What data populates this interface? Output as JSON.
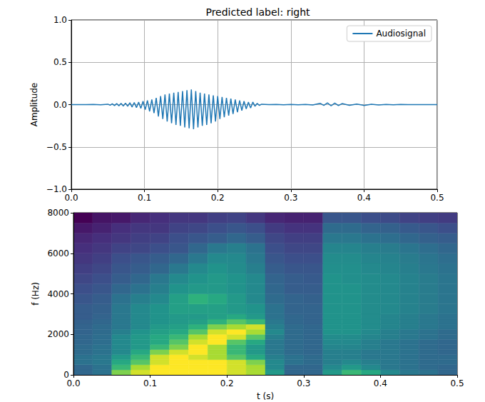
{
  "chart_data": [
    {
      "type": "line",
      "title": "Predicted label: right",
      "y_label": "Amplitude",
      "x": [
        0,
        0.01,
        0.02,
        0.03,
        0.04,
        0.05,
        0.053,
        0.056,
        0.059,
        0.062,
        0.065,
        0.068,
        0.071,
        0.074,
        0.077,
        0.08,
        0.083,
        0.086,
        0.089,
        0.092,
        0.095,
        0.098,
        0.101,
        0.104,
        0.107,
        0.11,
        0.113,
        0.116,
        0.119,
        0.122,
        0.125,
        0.128,
        0.131,
        0.134,
        0.137,
        0.14,
        0.143,
        0.146,
        0.149,
        0.152,
        0.155,
        0.158,
        0.161,
        0.164,
        0.167,
        0.17,
        0.173,
        0.176,
        0.179,
        0.182,
        0.185,
        0.188,
        0.191,
        0.194,
        0.197,
        0.2,
        0.203,
        0.206,
        0.209,
        0.212,
        0.215,
        0.218,
        0.221,
        0.224,
        0.227,
        0.23,
        0.233,
        0.236,
        0.239,
        0.242,
        0.245,
        0.248,
        0.251,
        0.254,
        0.257,
        0.26,
        0.27,
        0.28,
        0.29,
        0.3,
        0.31,
        0.32,
        0.33,
        0.34,
        0.345,
        0.35,
        0.355,
        0.36,
        0.365,
        0.37,
        0.38,
        0.39,
        0.4,
        0.41,
        0.42,
        0.43,
        0.44,
        0.45,
        0.46,
        0.47,
        0.48,
        0.49,
        0.5
      ],
      "series": [
        {
          "name": "Audiosignal",
          "color": "#1f77b4",
          "values": [
            0,
            0.001,
            -0.001,
            0.002,
            -0.003,
            0.005,
            -0.008,
            0.01,
            -0.012,
            0.012,
            -0.015,
            0.015,
            -0.018,
            0.018,
            -0.02,
            0.022,
            -0.028,
            0.025,
            -0.035,
            0.03,
            -0.045,
            0.04,
            -0.06,
            0.05,
            -0.08,
            0.06,
            -0.1,
            0.08,
            -0.14,
            0.1,
            -0.17,
            0.12,
            -0.2,
            0.13,
            -0.22,
            0.14,
            -0.24,
            0.15,
            -0.25,
            0.16,
            -0.27,
            0.17,
            -0.28,
            0.18,
            -0.29,
            0.16,
            -0.27,
            0.14,
            -0.25,
            0.13,
            -0.24,
            0.12,
            -0.22,
            0.11,
            -0.2,
            0.1,
            -0.17,
            0.09,
            -0.15,
            0.08,
            -0.13,
            0.07,
            -0.11,
            0.06,
            -0.09,
            0.05,
            -0.07,
            0.04,
            -0.05,
            0.03,
            -0.04,
            0.03,
            -0.02,
            0.015,
            -0.01,
            0.005,
            0,
            0.002,
            -0.002,
            0.002,
            -0.003,
            0.003,
            -0.005,
            0.015,
            -0.01,
            0.02,
            -0.015,
            0.018,
            -0.012,
            0.012,
            -0.008,
            0.006,
            -0.01,
            0.005,
            -0.004,
            0.003,
            -0.002,
            0.002,
            -0.001,
            0.001,
            0,
            0,
            0
          ]
        }
      ],
      "xlim": [
        0,
        0.5
      ],
      "xticks": [
        {
          "value": 0,
          "label": "0.0"
        },
        0.1,
        0.2,
        0.3,
        0.4,
        0.5
      ],
      "ylim": [
        -1,
        1
      ],
      "yticks": [
        {
          "value": -1,
          "label": "−1.0"
        },
        {
          "value": -0.5,
          "label": "−0.5"
        },
        {
          "value": 0,
          "label": "0.0"
        },
        0.5,
        {
          "value": 1,
          "label": "1.0"
        }
      ],
      "grid": true,
      "legend": "upper right"
    },
    {
      "type": "heatmap",
      "x_label": "t (s)",
      "y_label": "f (Hz)",
      "xlim": [
        0,
        0.5
      ],
      "xticks": [
        {
          "value": 0,
          "label": "0.0"
        },
        0.1,
        0.2,
        0.3,
        0.4,
        0.5
      ],
      "ylim": [
        0,
        8000
      ],
      "yticks": [
        0,
        2000,
        4000,
        6000,
        8000
      ],
      "x_bins": [
        0,
        0.025,
        0.05,
        0.075,
        0.1,
        0.125,
        0.15,
        0.175,
        0.2,
        0.225,
        0.25,
        0.275,
        0.3,
        0.325,
        0.35,
        0.375,
        0.4,
        0.425,
        0.45,
        0.475,
        0.5
      ],
      "y_bins": [
        0,
        250,
        500,
        750,
        1000,
        1250,
        1500,
        1750,
        2000,
        2250,
        2500,
        2750,
        3000,
        3500,
        4000,
        4500,
        5000,
        5500,
        6000,
        6500,
        7000,
        7500,
        8000
      ],
      "cells": [
        [
          45,
          48,
          80,
          90,
          95,
          95,
          95,
          95,
          90,
          85,
          60,
          45,
          45,
          60,
          70,
          65,
          55,
          50,
          48,
          45
        ],
        [
          45,
          48,
          70,
          85,
          95,
          95,
          95,
          95,
          90,
          85,
          55,
          45,
          45,
          55,
          60,
          55,
          50,
          48,
          46,
          45
        ],
        [
          48,
          50,
          65,
          75,
          90,
          95,
          95,
          95,
          90,
          80,
          55,
          48,
          46,
          52,
          55,
          52,
          50,
          48,
          46,
          46
        ],
        [
          48,
          50,
          60,
          70,
          90,
          95,
          90,
          85,
          75,
          65,
          52,
          48,
          46,
          52,
          52,
          50,
          50,
          48,
          46,
          46
        ],
        [
          46,
          48,
          55,
          65,
          80,
          90,
          95,
          85,
          70,
          60,
          50,
          46,
          45,
          52,
          52,
          50,
          50,
          48,
          46,
          45
        ],
        [
          46,
          48,
          55,
          60,
          70,
          80,
          95,
          85,
          70,
          60,
          50,
          46,
          45,
          54,
          54,
          52,
          50,
          48,
          46,
          45
        ],
        [
          45,
          47,
          55,
          60,
          65,
          75,
          90,
          95,
          75,
          65,
          50,
          46,
          45,
          55,
          55,
          52,
          50,
          48,
          46,
          45
        ],
        [
          45,
          47,
          55,
          60,
          65,
          70,
          85,
          95,
          90,
          75,
          52,
          46,
          45,
          56,
          56,
          54,
          52,
          50,
          48,
          46
        ],
        [
          44,
          46,
          52,
          58,
          62,
          65,
          75,
          90,
          95,
          85,
          55,
          46,
          45,
          58,
          58,
          55,
          52,
          50,
          48,
          46
        ],
        [
          44,
          46,
          50,
          55,
          60,
          62,
          68,
          80,
          85,
          90,
          52,
          46,
          45,
          58,
          58,
          56,
          54,
          52,
          50,
          48
        ],
        [
          43,
          45,
          50,
          55,
          58,
          60,
          62,
          68,
          75,
          70,
          50,
          45,
          44,
          58,
          58,
          56,
          54,
          52,
          50,
          48
        ],
        [
          42,
          44,
          50,
          55,
          58,
          60,
          60,
          62,
          65,
          60,
          48,
          45,
          44,
          58,
          58,
          56,
          54,
          52,
          50,
          48
        ],
        [
          42,
          43,
          50,
          55,
          58,
          62,
          62,
          62,
          60,
          58,
          48,
          44,
          44,
          58,
          58,
          56,
          55,
          53,
          51,
          49
        ],
        [
          40,
          42,
          48,
          52,
          55,
          62,
          68,
          65,
          60,
          55,
          46,
          44,
          43,
          58,
          58,
          56,
          55,
          53,
          51,
          49
        ],
        [
          38,
          40,
          45,
          48,
          52,
          58,
          60,
          60,
          58,
          55,
          45,
          42,
          42,
          58,
          58,
          56,
          55,
          53,
          51,
          49
        ],
        [
          36,
          38,
          42,
          45,
          50,
          55,
          58,
          60,
          58,
          55,
          44,
          42,
          41,
          58,
          57,
          56,
          55,
          53,
          51,
          49
        ],
        [
          34,
          36,
          40,
          42,
          45,
          50,
          55,
          58,
          56,
          52,
          42,
          40,
          40,
          57,
          57,
          55,
          54,
          52,
          50,
          48
        ],
        [
          32,
          34,
          38,
          40,
          42,
          45,
          50,
          55,
          55,
          50,
          40,
          38,
          38,
          56,
          56,
          54,
          53,
          51,
          49,
          47
        ],
        [
          30,
          32,
          35,
          36,
          38,
          40,
          45,
          50,
          52,
          48,
          38,
          36,
          36,
          54,
          54,
          52,
          51,
          49,
          47,
          45
        ],
        [
          28,
          30,
          32,
          34,
          35,
          38,
          40,
          42,
          45,
          42,
          36,
          34,
          34,
          50,
          50,
          48,
          47,
          45,
          43,
          42
        ],
        [
          25,
          27,
          30,
          32,
          32,
          35,
          36,
          38,
          40,
          38,
          33,
          31,
          31,
          46,
          46,
          44,
          43,
          41,
          40,
          38
        ],
        [
          20,
          24,
          25,
          28,
          30,
          32,
          32,
          34,
          35,
          32,
          28,
          27,
          27,
          40,
          40,
          38,
          37,
          35,
          34,
          33
        ]
      ]
    }
  ]
}
